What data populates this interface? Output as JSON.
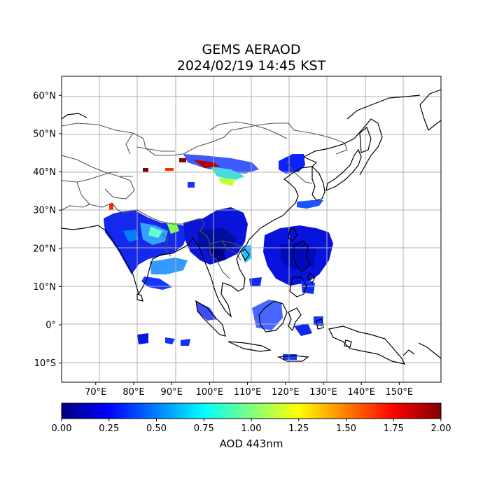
{
  "title": {
    "line1": "GEMS AERAOD",
    "line2": "2024/02/19 14:45 KST"
  },
  "map": {
    "lon_range": [
      61,
      161
    ],
    "lat_range": [
      -15,
      65
    ],
    "lat_ticks": [
      "60°N",
      "50°N",
      "40°N",
      "30°N",
      "20°N",
      "10°N",
      "0°",
      "10°S"
    ],
    "lat_values": [
      60,
      50,
      40,
      30,
      20,
      10,
      0,
      -10
    ],
    "lon_ticks": [
      "70°E",
      "80°E",
      "90°E",
      "100°E",
      "110°E",
      "120°E",
      "130°E",
      "140°E",
      "150°E"
    ],
    "lon_values": [
      70,
      80,
      90,
      100,
      110,
      120,
      130,
      140,
      150
    ],
    "grid": true,
    "coastline_color": "#000000",
    "border_color": "#555555"
  },
  "colorbar": {
    "label": "AOD 443nm",
    "colormap": "jet",
    "range": [
      0.0,
      2.0
    ],
    "ticks": [
      "0.00",
      "0.25",
      "0.50",
      "0.75",
      "1.00",
      "1.25",
      "1.50",
      "1.75",
      "2.00"
    ],
    "tick_values": [
      0.0,
      0.25,
      0.5,
      0.75,
      1.0,
      1.25,
      1.5,
      1.75,
      2.0
    ],
    "stops": [
      "#00007f",
      "#0000ff",
      "#007fff",
      "#00ffff",
      "#7fff7f",
      "#ffff00",
      "#ff7f00",
      "#ff0000",
      "#7f0000"
    ]
  }
}
